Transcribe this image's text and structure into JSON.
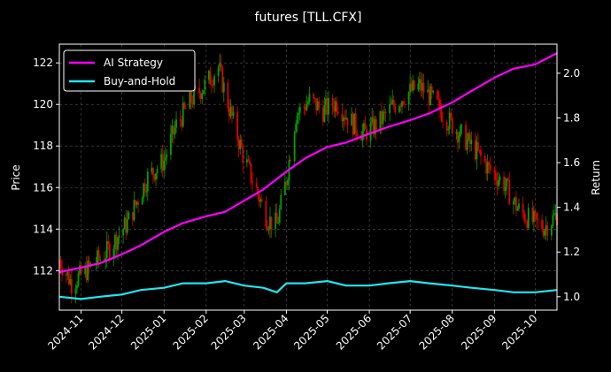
{
  "chart_data": {
    "type": "line",
    "title": "futures [TLL.CFX]",
    "ylabel_left": "Price",
    "ylabel_right": "Return",
    "grid": true,
    "legend_position": "top-left",
    "colors": {
      "background": "#000000",
      "ai_strategy": "#ff00ff",
      "buy_and_hold": "#22e5f0",
      "candle_up": "#00a000",
      "candle_down": "#e00000",
      "grid": "#555555",
      "text": "#ffffff"
    },
    "x_ticks": [
      "2024-11",
      "2024-12",
      "2025-01",
      "2025-02",
      "2025-03",
      "2025-04",
      "2025-05",
      "2025-06",
      "2025-07",
      "2025-08",
      "2025-09",
      "2025-10"
    ],
    "xlim": [
      "2024-10-16",
      "2025-10-17"
    ],
    "ylim_left": [
      110.1,
      122.9
    ],
    "yticks_left": [
      112,
      114,
      116,
      118,
      120,
      122
    ],
    "ylim_right": [
      0.94,
      2.13
    ],
    "yticks_right": [
      "1.0",
      "1.2",
      "1.4",
      "1.6",
      "1.8",
      "2.0"
    ],
    "price_anchors": [
      [
        "2024-10-16",
        112.5
      ],
      [
        "2024-10-25",
        111.4
      ],
      [
        "2024-11-05",
        112.0
      ],
      [
        "2024-11-20",
        112.9
      ],
      [
        "2024-12-05",
        114.3
      ],
      [
        "2024-12-20",
        116.5
      ],
      [
        "2025-01-01",
        117.3
      ],
      [
        "2025-01-10",
        119.0
      ],
      [
        "2025-01-22",
        120.3
      ],
      [
        "2025-02-01",
        121.0
      ],
      [
        "2025-02-10",
        121.8
      ],
      [
        "2025-02-18",
        119.8
      ],
      [
        "2025-02-28",
        117.6
      ],
      [
        "2025-03-08",
        116.2
      ],
      [
        "2025-03-18",
        114.5
      ],
      [
        "2025-03-25",
        114.2
      ],
      [
        "2025-04-01",
        116.4
      ],
      [
        "2025-04-08",
        119.5
      ],
      [
        "2025-04-18",
        120.2
      ],
      [
        "2025-04-28",
        119.7
      ],
      [
        "2025-05-08",
        120.1
      ],
      [
        "2025-05-18",
        119.2
      ],
      [
        "2025-05-28",
        118.6
      ],
      [
        "2025-06-08",
        119.1
      ],
      [
        "2025-06-18",
        119.9
      ],
      [
        "2025-06-28",
        120.5
      ],
      [
        "2025-07-08",
        120.9
      ],
      [
        "2025-07-18",
        120.2
      ],
      [
        "2025-07-28",
        119.3
      ],
      [
        "2025-08-08",
        118.5
      ],
      [
        "2025-08-18",
        117.8
      ],
      [
        "2025-08-28",
        116.9
      ],
      [
        "2025-09-08",
        116.2
      ],
      [
        "2025-09-18",
        115.0
      ],
      [
        "2025-09-28",
        114.4
      ],
      [
        "2025-10-08",
        114.1
      ],
      [
        "2025-10-17",
        114.7
      ]
    ],
    "series": [
      {
        "name": "AI Strategy",
        "values": [
          [
            "2024-10-16",
            1.11
          ],
          [
            "2024-11-01",
            1.13
          ],
          [
            "2024-11-15",
            1.15
          ],
          [
            "2024-12-01",
            1.19
          ],
          [
            "2024-12-15",
            1.23
          ],
          [
            "2025-01-01",
            1.29
          ],
          [
            "2025-01-15",
            1.33
          ],
          [
            "2025-02-01",
            1.36
          ],
          [
            "2025-02-15",
            1.38
          ],
          [
            "2025-03-01",
            1.43
          ],
          [
            "2025-03-15",
            1.48
          ],
          [
            "2025-04-01",
            1.56
          ],
          [
            "2025-04-15",
            1.62
          ],
          [
            "2025-05-01",
            1.67
          ],
          [
            "2025-05-15",
            1.69
          ],
          [
            "2025-06-01",
            1.73
          ],
          [
            "2025-06-15",
            1.76
          ],
          [
            "2025-07-01",
            1.79
          ],
          [
            "2025-07-15",
            1.82
          ],
          [
            "2025-08-01",
            1.87
          ],
          [
            "2025-08-15",
            1.92
          ],
          [
            "2025-09-01",
            1.98
          ],
          [
            "2025-09-15",
            2.02
          ],
          [
            "2025-10-01",
            2.04
          ],
          [
            "2025-10-17",
            2.09
          ]
        ]
      },
      {
        "name": "Buy-and-Hold",
        "values": [
          [
            "2024-10-16",
            1.0
          ],
          [
            "2024-11-01",
            0.99
          ],
          [
            "2024-11-15",
            1.0
          ],
          [
            "2024-12-01",
            1.01
          ],
          [
            "2024-12-15",
            1.03
          ],
          [
            "2025-01-01",
            1.04
          ],
          [
            "2025-01-15",
            1.06
          ],
          [
            "2025-02-01",
            1.06
          ],
          [
            "2025-02-15",
            1.07
          ],
          [
            "2025-03-01",
            1.05
          ],
          [
            "2025-03-15",
            1.04
          ],
          [
            "2025-03-25",
            1.02
          ],
          [
            "2025-04-01",
            1.06
          ],
          [
            "2025-04-15",
            1.06
          ],
          [
            "2025-05-01",
            1.07
          ],
          [
            "2025-05-15",
            1.05
          ],
          [
            "2025-06-01",
            1.05
          ],
          [
            "2025-06-15",
            1.06
          ],
          [
            "2025-07-01",
            1.07
          ],
          [
            "2025-07-15",
            1.06
          ],
          [
            "2025-08-01",
            1.05
          ],
          [
            "2025-08-15",
            1.04
          ],
          [
            "2025-09-01",
            1.03
          ],
          [
            "2025-09-15",
            1.02
          ],
          [
            "2025-10-01",
            1.02
          ],
          [
            "2025-10-17",
            1.03
          ]
        ]
      }
    ]
  }
}
